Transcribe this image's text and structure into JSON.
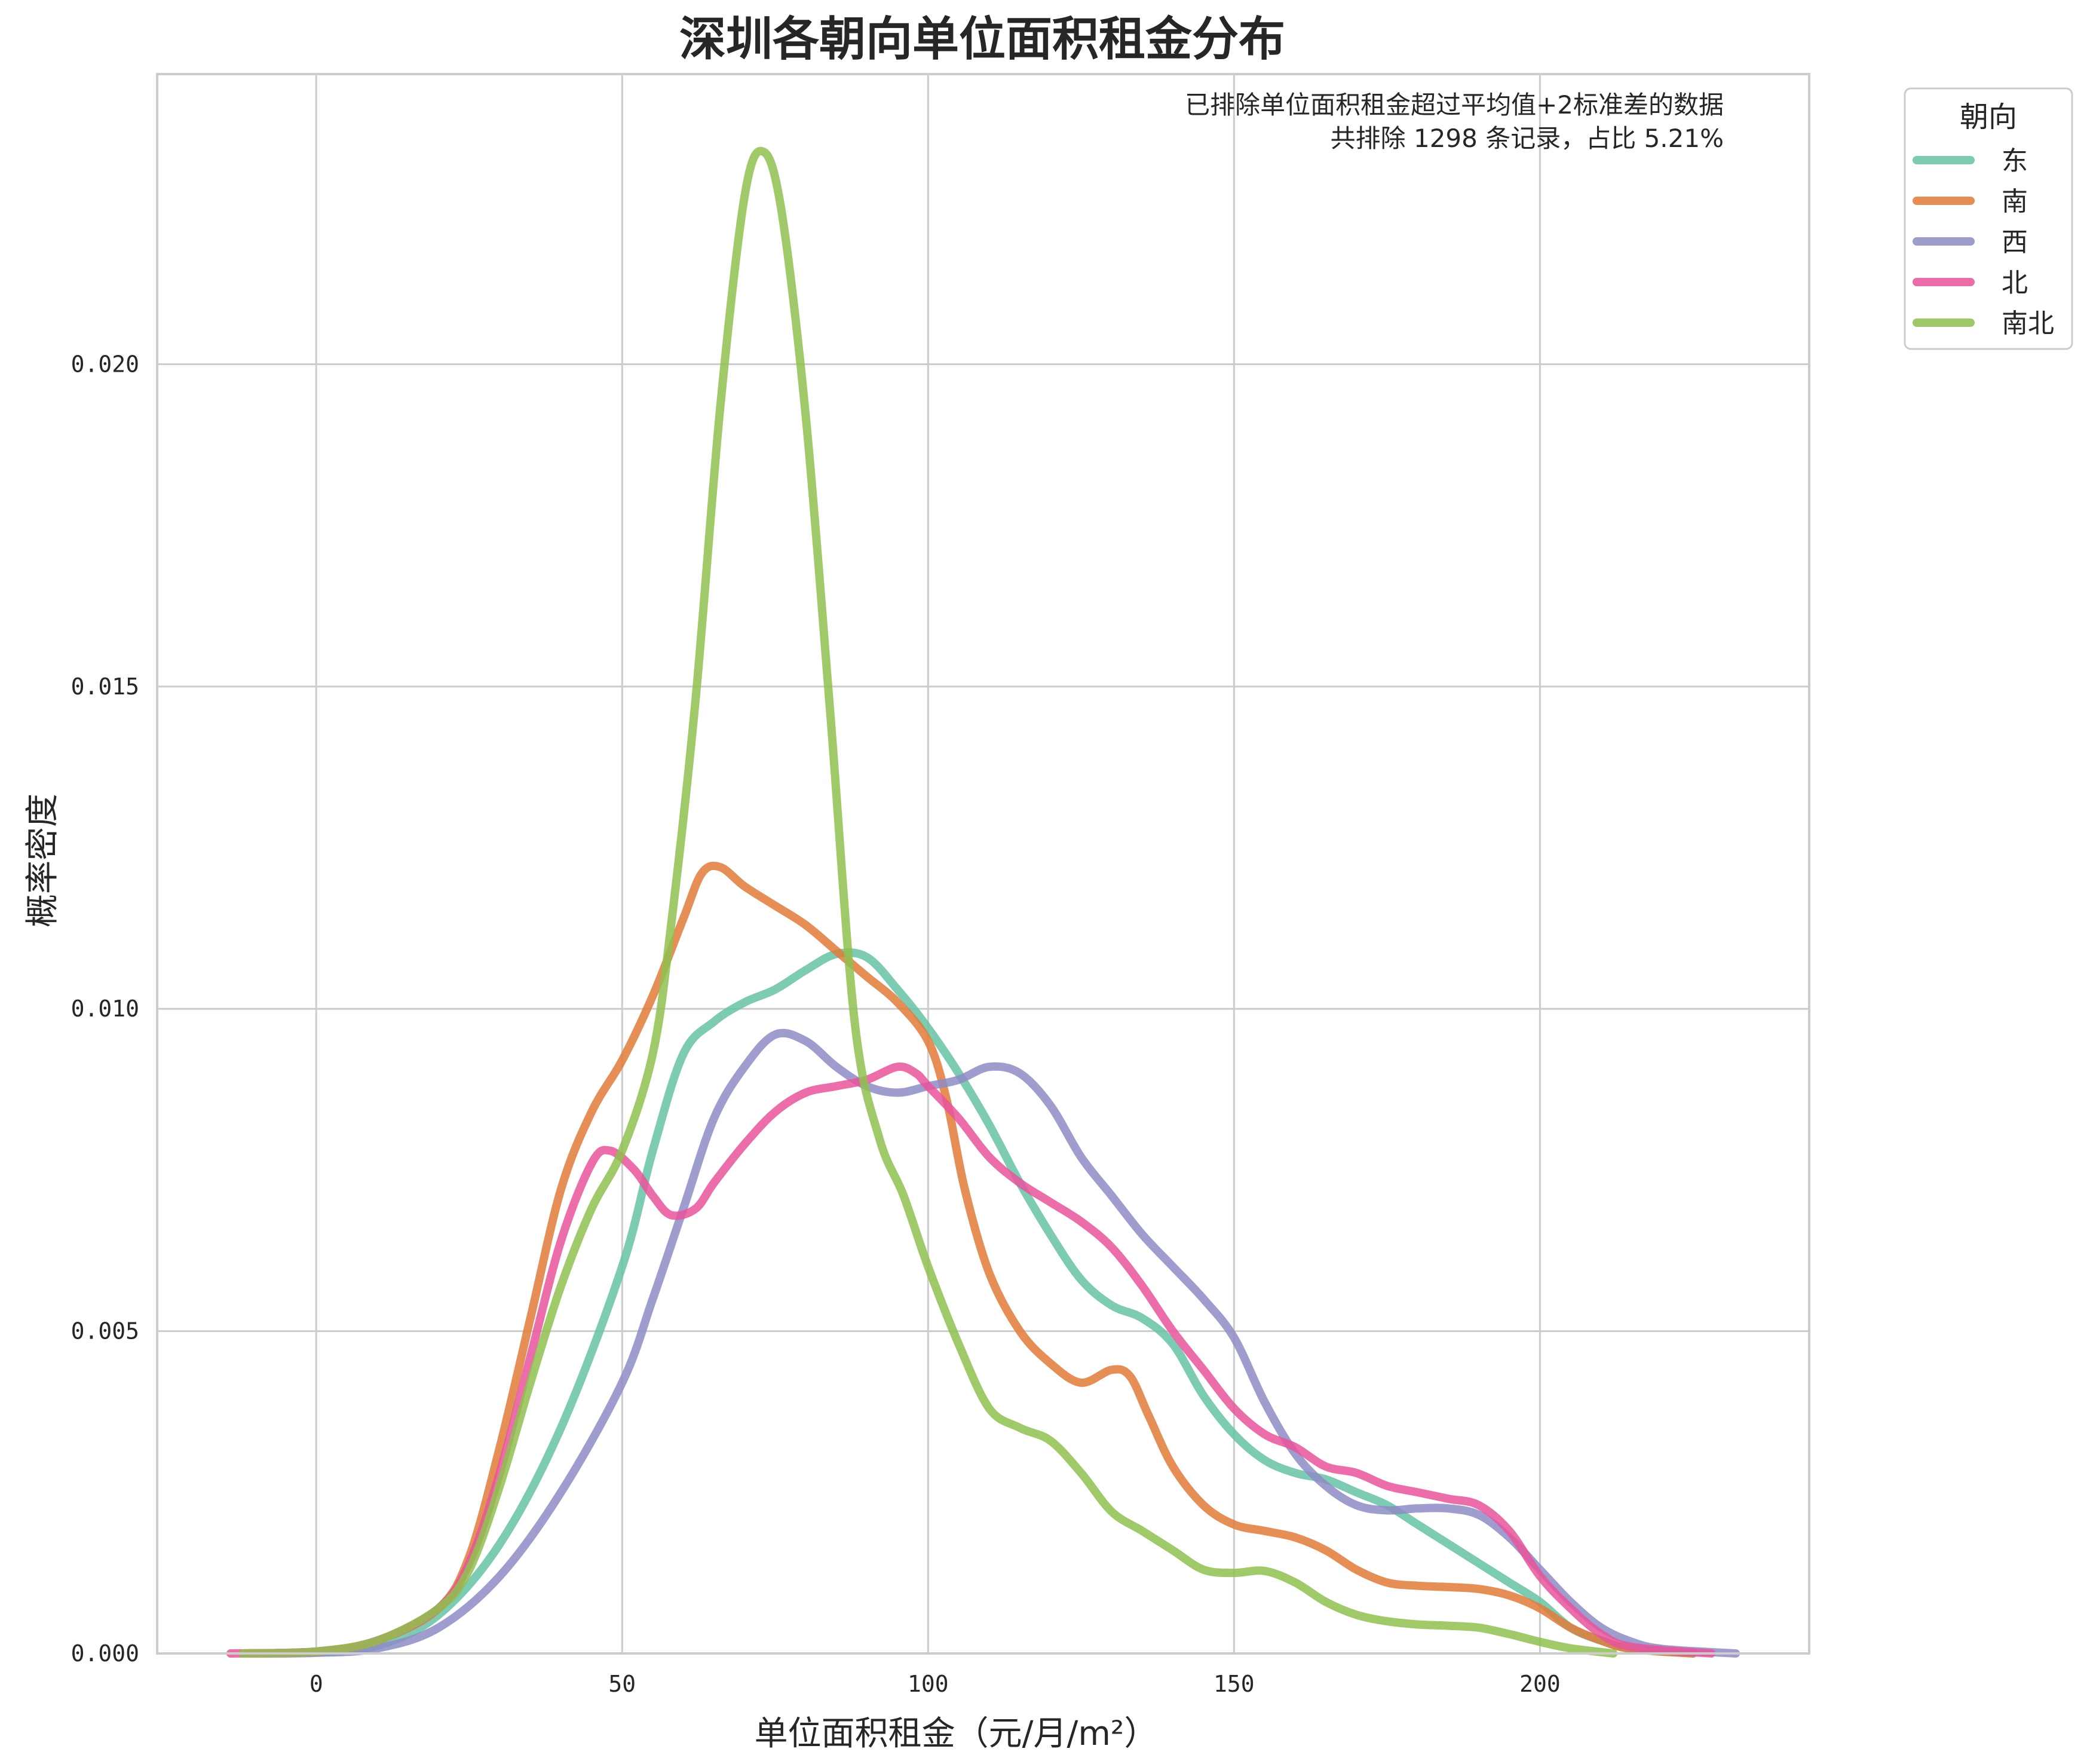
{
  "chart_data": {
    "type": "line",
    "title": "深圳各朝向单位面积租金分布",
    "xlabel": "单位面积租金（元/月/m²）",
    "ylabel": "概率密度",
    "xlim": [
      -26,
      244
    ],
    "ylim": [
      0,
      0.0245
    ],
    "xticks": [
      0,
      50,
      100,
      150,
      200
    ],
    "xtick_labels": [
      "0",
      "50",
      "100",
      "150",
      "200"
    ],
    "yticks": [
      0,
      0.005,
      0.01,
      0.015,
      0.02
    ],
    "ytick_labels": [
      "0.000",
      "0.005",
      "0.010",
      "0.015",
      "0.020"
    ],
    "grid": true,
    "annotation": [
      "已排除单位面积租金超过平均值+2标准差的数据",
      "共排除 1298 条记录，占比 5.21%"
    ],
    "legend": {
      "title": "朝向",
      "placement": "outside-top-right"
    },
    "series": [
      {
        "name": "东",
        "color": "#66c2a5",
        "points": [
          [
            -12,
            0
          ],
          [
            0,
            2e-05
          ],
          [
            10,
            0.00012
          ],
          [
            20,
            0.0006
          ],
          [
            30,
            0.0017
          ],
          [
            40,
            0.0035
          ],
          [
            50,
            0.006
          ],
          [
            55,
            0.0078
          ],
          [
            60,
            0.0093
          ],
          [
            65,
            0.0098
          ],
          [
            70,
            0.0101
          ],
          [
            75,
            0.0103
          ],
          [
            80,
            0.0106
          ],
          [
            85,
            0.01085
          ],
          [
            90,
            0.0108
          ],
          [
            95,
            0.0103
          ],
          [
            100,
            0.0097
          ],
          [
            105,
            0.009
          ],
          [
            110,
            0.0082
          ],
          [
            115,
            0.0073
          ],
          [
            120,
            0.0065
          ],
          [
            125,
            0.0058
          ],
          [
            130,
            0.0054
          ],
          [
            135,
            0.0052
          ],
          [
            140,
            0.0048
          ],
          [
            145,
            0.004
          ],
          [
            150,
            0.0034
          ],
          [
            155,
            0.003
          ],
          [
            160,
            0.0028
          ],
          [
            165,
            0.0027
          ],
          [
            170,
            0.0025
          ],
          [
            175,
            0.0023
          ],
          [
            180,
            0.002
          ],
          [
            185,
            0.0017
          ],
          [
            190,
            0.0014
          ],
          [
            195,
            0.0011
          ],
          [
            200,
            0.0008
          ],
          [
            205,
            0.0004
          ],
          [
            210,
            0.0002
          ],
          [
            215,
            7e-05
          ],
          [
            225,
            0
          ]
        ]
      },
      {
        "name": "南",
        "color": "#e07b39",
        "points": [
          [
            -12,
            0
          ],
          [
            0,
            3e-05
          ],
          [
            10,
            0.0002
          ],
          [
            20,
            0.0007
          ],
          [
            25,
            0.0015
          ],
          [
            30,
            0.0032
          ],
          [
            35,
            0.0052
          ],
          [
            40,
            0.0072
          ],
          [
            45,
            0.0084
          ],
          [
            50,
            0.0092
          ],
          [
            55,
            0.0102
          ],
          [
            60,
            0.0114
          ],
          [
            63,
            0.0121
          ],
          [
            66,
            0.0122
          ],
          [
            70,
            0.0119
          ],
          [
            75,
            0.0116
          ],
          [
            80,
            0.0113
          ],
          [
            85,
            0.0109
          ],
          [
            90,
            0.0105
          ],
          [
            95,
            0.0101
          ],
          [
            100,
            0.0095
          ],
          [
            103,
            0.0086
          ],
          [
            106,
            0.0072
          ],
          [
            110,
            0.0059
          ],
          [
            115,
            0.005
          ],
          [
            120,
            0.0045
          ],
          [
            125,
            0.0042
          ],
          [
            130,
            0.0044
          ],
          [
            133,
            0.0043
          ],
          [
            136,
            0.0037
          ],
          [
            140,
            0.0029
          ],
          [
            145,
            0.0023
          ],
          [
            150,
            0.002
          ],
          [
            155,
            0.0019
          ],
          [
            160,
            0.0018
          ],
          [
            165,
            0.0016
          ],
          [
            170,
            0.0013
          ],
          [
            175,
            0.0011
          ],
          [
            180,
            0.00105
          ],
          [
            185,
            0.00103
          ],
          [
            190,
            0.001
          ],
          [
            195,
            0.0009
          ],
          [
            200,
            0.0007
          ],
          [
            205,
            0.0004
          ],
          [
            210,
            0.0002
          ],
          [
            215,
            7e-05
          ],
          [
            225,
            0
          ]
        ]
      },
      {
        "name": "西",
        "color": "#8d8cc4",
        "points": [
          [
            -12,
            0
          ],
          [
            0,
            1e-05
          ],
          [
            10,
            8e-05
          ],
          [
            20,
            0.0004
          ],
          [
            30,
            0.0012
          ],
          [
            40,
            0.0025
          ],
          [
            50,
            0.0042
          ],
          [
            55,
            0.0055
          ],
          [
            60,
            0.0069
          ],
          [
            65,
            0.0083
          ],
          [
            70,
            0.0091
          ],
          [
            75,
            0.0096
          ],
          [
            80,
            0.0095
          ],
          [
            85,
            0.0091
          ],
          [
            90,
            0.0088
          ],
          [
            95,
            0.0087
          ],
          [
            100,
            0.0088
          ],
          [
            105,
            0.0089
          ],
          [
            110,
            0.0091
          ],
          [
            115,
            0.009
          ],
          [
            120,
            0.0085
          ],
          [
            125,
            0.0077
          ],
          [
            130,
            0.0071
          ],
          [
            135,
            0.0065
          ],
          [
            140,
            0.006
          ],
          [
            145,
            0.0055
          ],
          [
            150,
            0.0049
          ],
          [
            155,
            0.0039
          ],
          [
            160,
            0.0031
          ],
          [
            165,
            0.0026
          ],
          [
            170,
            0.0023
          ],
          [
            175,
            0.00222
          ],
          [
            180,
            0.00225
          ],
          [
            185,
            0.00225
          ],
          [
            190,
            0.00215
          ],
          [
            195,
            0.0018
          ],
          [
            200,
            0.0013
          ],
          [
            205,
            0.0008
          ],
          [
            210,
            0.0004
          ],
          [
            215,
            0.00018
          ],
          [
            220,
            7e-05
          ],
          [
            232,
            0
          ]
        ]
      },
      {
        "name": "北",
        "color": "#e7539b",
        "points": [
          [
            -14,
            0
          ],
          [
            0,
            3e-05
          ],
          [
            10,
            0.0002
          ],
          [
            20,
            0.0007
          ],
          [
            25,
            0.0014
          ],
          [
            30,
            0.0028
          ],
          [
            35,
            0.0046
          ],
          [
            40,
            0.0064
          ],
          [
            45,
            0.0076
          ],
          [
            48,
            0.0078
          ],
          [
            52,
            0.0075
          ],
          [
            55,
            0.0071
          ],
          [
            58,
            0.0068
          ],
          [
            62,
            0.0069
          ],
          [
            65,
            0.0073
          ],
          [
            70,
            0.0079
          ],
          [
            75,
            0.0084
          ],
          [
            80,
            0.0087
          ],
          [
            85,
            0.0088
          ],
          [
            90,
            0.0089
          ],
          [
            95,
            0.0091
          ],
          [
            98,
            0.009
          ],
          [
            100,
            0.0088
          ],
          [
            105,
            0.0083
          ],
          [
            110,
            0.0077
          ],
          [
            115,
            0.0073
          ],
          [
            120,
            0.007
          ],
          [
            125,
            0.0067
          ],
          [
            130,
            0.0063
          ],
          [
            135,
            0.0057
          ],
          [
            140,
            0.005
          ],
          [
            145,
            0.0044
          ],
          [
            150,
            0.0038
          ],
          [
            155,
            0.0034
          ],
          [
            160,
            0.0032
          ],
          [
            165,
            0.0029
          ],
          [
            170,
            0.0028
          ],
          [
            175,
            0.0026
          ],
          [
            180,
            0.0025
          ],
          [
            185,
            0.0024
          ],
          [
            190,
            0.0023
          ],
          [
            195,
            0.0019
          ],
          [
            200,
            0.0012
          ],
          [
            205,
            0.0007
          ],
          [
            210,
            0.0003
          ],
          [
            215,
            0.0001
          ],
          [
            228,
            0
          ]
        ]
      },
      {
        "name": "南北",
        "color": "#8fbf4f",
        "points": [
          [
            -12,
            0
          ],
          [
            0,
            3e-05
          ],
          [
            10,
            0.0002
          ],
          [
            20,
            0.0007
          ],
          [
            25,
            0.0013
          ],
          [
            30,
            0.0026
          ],
          [
            35,
            0.0042
          ],
          [
            40,
            0.0057
          ],
          [
            45,
            0.0069
          ],
          [
            50,
            0.0078
          ],
          [
            55,
            0.0093
          ],
          [
            58,
            0.0113
          ],
          [
            62,
            0.0148
          ],
          [
            66,
            0.0193
          ],
          [
            70,
            0.0226
          ],
          [
            73,
            0.0233
          ],
          [
            76,
            0.0224
          ],
          [
            80,
            0.0192
          ],
          [
            84,
            0.0146
          ],
          [
            88,
            0.0098
          ],
          [
            92,
            0.008
          ],
          [
            96,
            0.0071
          ],
          [
            100,
            0.006
          ],
          [
            105,
            0.0048
          ],
          [
            110,
            0.0038
          ],
          [
            115,
            0.0035
          ],
          [
            120,
            0.0033
          ],
          [
            125,
            0.0028
          ],
          [
            130,
            0.0022
          ],
          [
            135,
            0.0019
          ],
          [
            140,
            0.0016
          ],
          [
            145,
            0.0013
          ],
          [
            150,
            0.00125
          ],
          [
            155,
            0.00128
          ],
          [
            160,
            0.0011
          ],
          [
            165,
            0.0008
          ],
          [
            170,
            0.0006
          ],
          [
            175,
            0.0005
          ],
          [
            180,
            0.00045
          ],
          [
            185,
            0.00043
          ],
          [
            190,
            0.0004
          ],
          [
            195,
            0.0003
          ],
          [
            200,
            0.00018
          ],
          [
            205,
            8e-05
          ],
          [
            212,
            0
          ]
        ]
      }
    ]
  }
}
